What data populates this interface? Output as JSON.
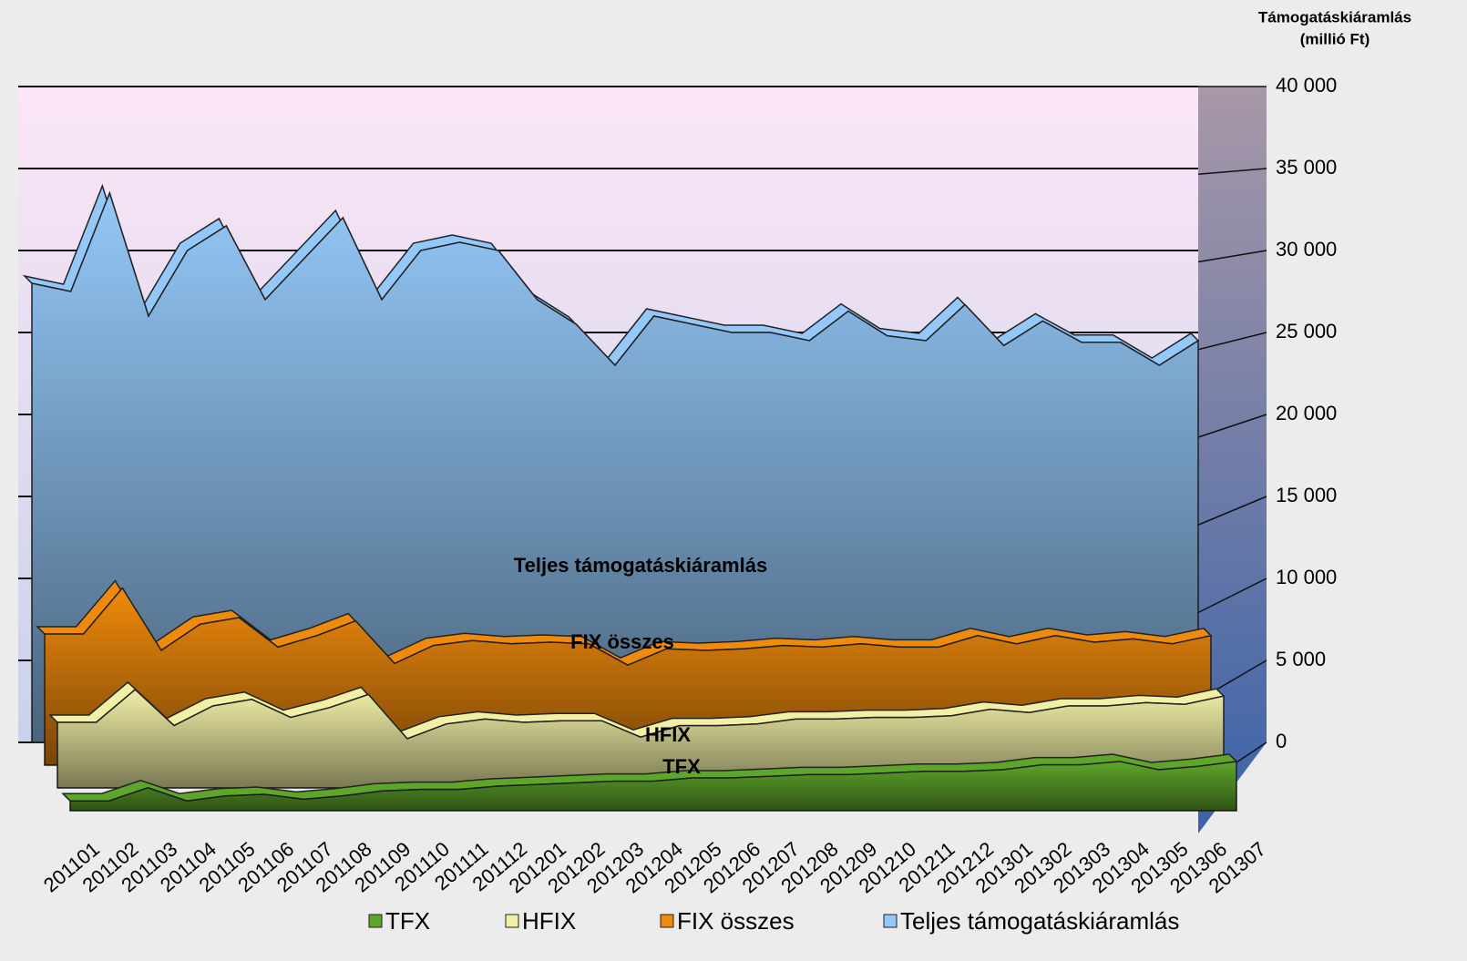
{
  "chart_data": {
    "type": "area3d",
    "y_label": [
      "Támogatáskiáramlás",
      "(millió Ft)"
    ],
    "categories": [
      "201101",
      "201102",
      "201103",
      "201104",
      "201105",
      "201106",
      "201107",
      "201108",
      "201109",
      "201110",
      "201111",
      "201112",
      "201201",
      "201202",
      "201203",
      "201204",
      "201205",
      "201206",
      "201207",
      "201208",
      "201209",
      "201210",
      "201211",
      "201212",
      "201301",
      "201302",
      "201303",
      "201304",
      "201305",
      "201306",
      "201307"
    ],
    "series": [
      {
        "name": "TFX",
        "color": "#5ea62a",
        "values": [
          600,
          600,
          1400,
          600,
          900,
          1000,
          700,
          900,
          1200,
          1300,
          1300,
          1500,
          1600,
          1700,
          1800,
          1800,
          2000,
          2000,
          2100,
          2200,
          2200,
          2300,
          2400,
          2400,
          2500,
          2800,
          2800,
          3000,
          2500,
          2700,
          3000
        ]
      },
      {
        "name": "HFIX",
        "color": "#f2f0a6",
        "values": [
          4000,
          4000,
          6000,
          3800,
          5000,
          5400,
          4300,
          4900,
          5700,
          3000,
          3900,
          4200,
          4000,
          4100,
          4100,
          3100,
          3800,
          3800,
          3900,
          4200,
          4200,
          4300,
          4300,
          4400,
          4800,
          4600,
          5000,
          5000,
          5200,
          5100,
          5600
        ]
      },
      {
        "name": "FIX összes",
        "color": "#f08a0c",
        "values": [
          8000,
          8000,
          10800,
          7000,
          8600,
          9000,
          7200,
          7900,
          8800,
          6200,
          7300,
          7600,
          7400,
          7500,
          7400,
          6100,
          7100,
          7000,
          7100,
          7300,
          7200,
          7400,
          7200,
          7200,
          7900,
          7400,
          7900,
          7500,
          7700,
          7400,
          7900
        ]
      },
      {
        "name": "Teljes támogatáskiáramlás",
        "color": "#94c8f8",
        "values": [
          28000,
          27500,
          33500,
          26000,
          30000,
          31500,
          27000,
          29500,
          32000,
          27000,
          30000,
          30500,
          30000,
          27000,
          25500,
          23000,
          26000,
          25500,
          25000,
          25000,
          24500,
          26300,
          24800,
          24500,
          26700,
          24200,
          25700,
          24400,
          24400,
          23000,
          24500
        ]
      }
    ],
    "ylim": [
      0,
      40000
    ],
    "yticks": [
      0,
      {
        "value": 5000,
        "label": "5 000"
      },
      {
        "value": 10000,
        "label": "10 000"
      },
      {
        "value": 15000,
        "label": "15 000"
      },
      {
        "value": 20000,
        "label": "20 000"
      },
      {
        "value": 25000,
        "label": "25 000"
      },
      {
        "value": 30000,
        "label": "30 000"
      },
      {
        "value": 35000,
        "label": "35 000"
      },
      {
        "value": 40000,
        "label": "40 000"
      }
    ],
    "grid": true,
    "legend": "bottom"
  }
}
